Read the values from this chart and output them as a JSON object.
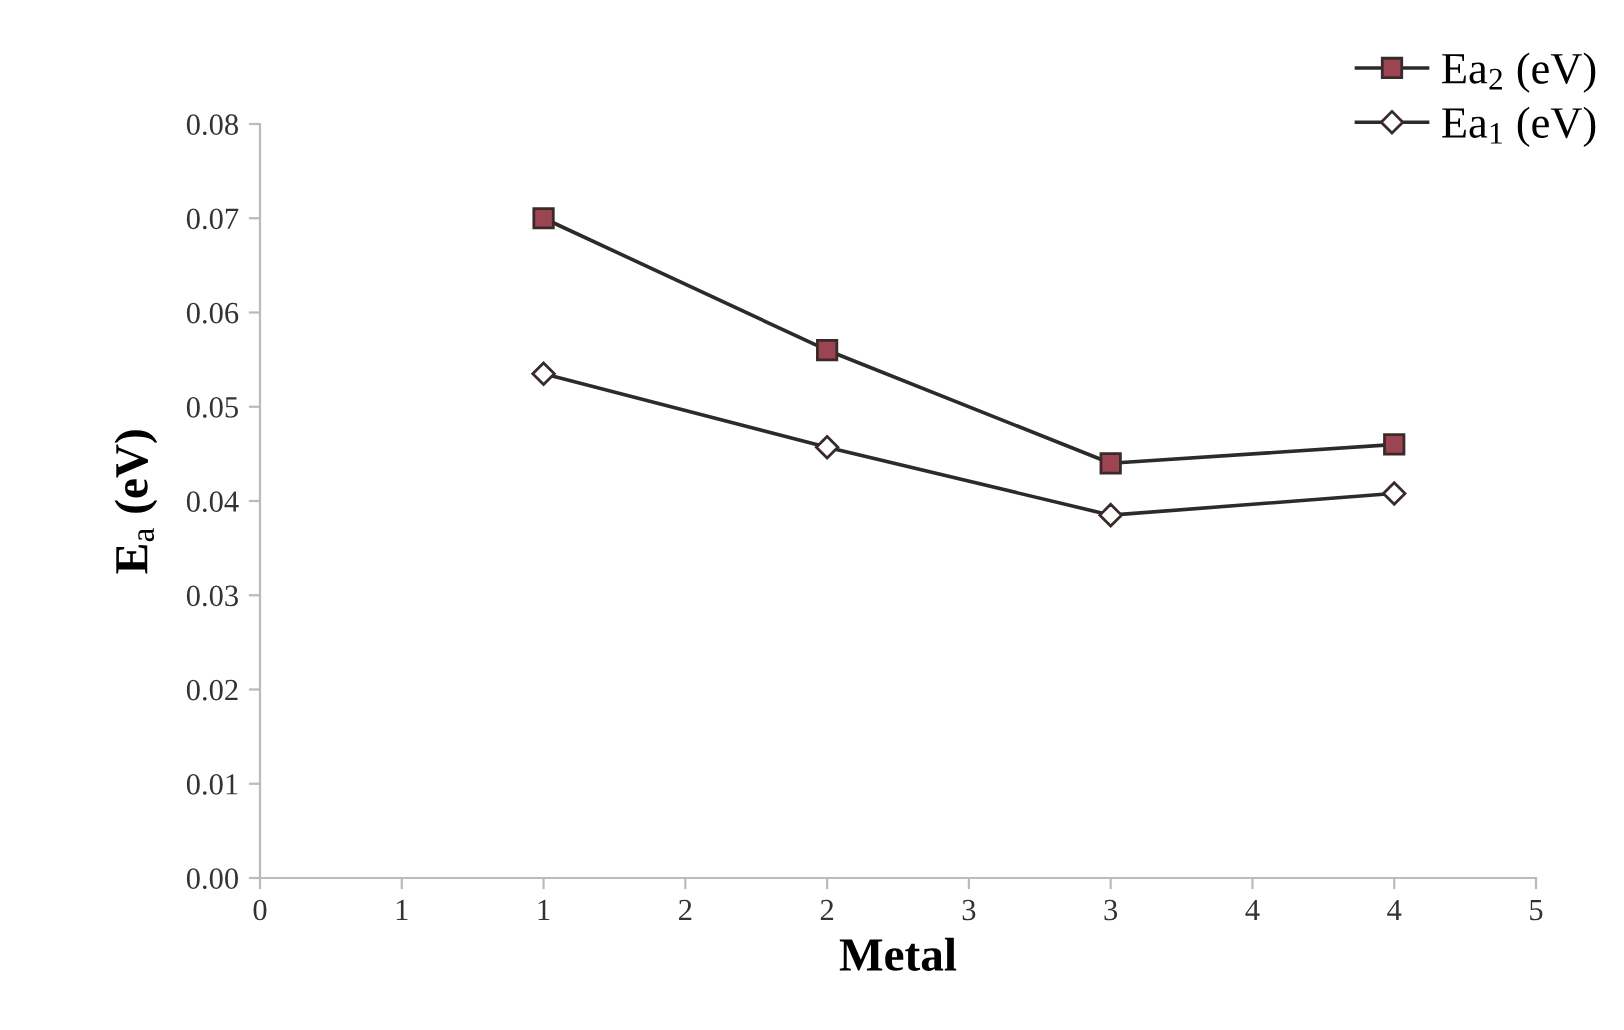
{
  "chart_data": {
    "type": "line",
    "xlabel": "Metal",
    "ylabel": "E$_{a}$ (eV)",
    "x": [
      1,
      2,
      3,
      4
    ],
    "series": [
      {
        "name": "Ea$_{2}$ (eV)",
        "color": "#9b4452",
        "marker": "square",
        "values": [
          0.07,
          0.056,
          0.044,
          0.046
        ]
      },
      {
        "name": "Ea$_{1}$ (eV)",
        "color": "#ffffff",
        "marker": "diamond",
        "values": [
          0.0535,
          0.0457,
          0.0385,
          0.0408
        ]
      }
    ],
    "xlim": [
      0,
      4.5
    ],
    "xticks": [
      0,
      {
        "value": 0.5,
        "label": "1"
      },
      1,
      {
        "value": 1.5,
        "label": "2"
      },
      2,
      {
        "value": 2.5,
        "label": "3"
      },
      3,
      {
        "value": 3.5,
        "label": "4"
      },
      4,
      {
        "value": 4.5,
        "label": "5"
      }
    ],
    "ylim": [
      0,
      0.08
    ],
    "yticks": [
      {
        "value": 0,
        "label": "0.00"
      },
      {
        "value": 0.01,
        "label": "0.01"
      },
      {
        "value": 0.02,
        "label": "0.02"
      },
      {
        "value": 0.03,
        "label": "0.03"
      },
      {
        "value": 0.04,
        "label": "0.04"
      },
      {
        "value": 0.05,
        "label": "0.05"
      },
      {
        "value": 0.06,
        "label": "0.06"
      },
      {
        "value": 0.07,
        "label": "0.07"
      },
      {
        "value": 0.08,
        "label": "0.08"
      }
    ],
    "legend": "top right",
    "line_style": "solid"
  }
}
